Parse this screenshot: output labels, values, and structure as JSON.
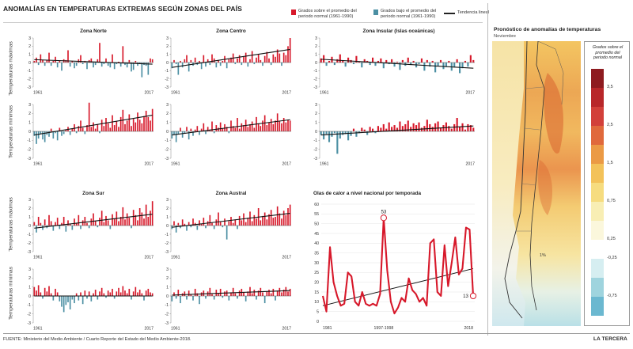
{
  "title": "ANOMALÍAS EN TEMPERATURAS EXTREMAS SEGÚN ZONAS DEL PAÍS",
  "legend": {
    "above": "Grados sobre el promedio del periodo normal (1961-1990)",
    "below": "Grados bajo el promedio del periodo normal (1961-1990)",
    "trend": "Tendencia lineal",
    "above_color": "#d7182a",
    "below_color": "#4b8fa3"
  },
  "row_labels": {
    "max": "Temperaturas máximas",
    "min": "Temperaturas mínimas"
  },
  "zones": {
    "norte": "Zona Norte",
    "centro": "Zona Centro",
    "insular": "Zona Insular (Islas oceánicas)",
    "sur": "Zona Sur",
    "austral": "Zona Austral"
  },
  "heat_title": "Olas de calor a nivel nacional por temporada",
  "map": {
    "title": "Pronóstico de anomalías de temperaturas",
    "subtitle": "Noviembre",
    "scale_title": "Grados sobre el promedio del periodo normal",
    "scale_labels": [
      "3,5",
      "2,5",
      "1,5",
      "0,75",
      "0,25",
      "-0,25",
      "-0,75"
    ],
    "scale_colors": [
      "#8e1b20",
      "#b8272a",
      "#d2403a",
      "#e0693c",
      "#eb9a45",
      "#f3c25a",
      "#f6dc7f",
      "#f8eeb4",
      "#fbf7dc",
      "#ffffff",
      "#d6eef1",
      "#9fd4de",
      "#6bb8d0"
    ],
    "islands_label": "1%"
  },
  "footer": "FUENTE: Ministerio del Medio Ambiente / Cuarto Reporte del Estado del Medio Ambiente-2018.",
  "brand": "LA TERCERA",
  "chart_data": [
    {
      "type": "bar",
      "name": "Zona Norte - máximas",
      "x_start": 1961,
      "x_end": 2017,
      "x_tick_labels": [
        "1961",
        "2017"
      ],
      "ylim": [
        -3,
        3
      ],
      "values": [
        0.2,
        0.6,
        -0.3,
        1.0,
        0.3,
        -0.4,
        0.3,
        1.2,
        -0.4,
        0.2,
        0.7,
        -0.6,
        0.2,
        -1.0,
        0.4,
        0.3,
        1.5,
        -0.5,
        0.2,
        -0.7,
        -0.4,
        0.4,
        0.9,
        -0.2,
        0.2,
        -0.8,
        0.3,
        0.5,
        -0.6,
        -0.3,
        0.4,
        2.4,
        -0.5,
        -0.2,
        0.5,
        -0.4,
        -0.6,
        1.0,
        -0.8,
        -0.2,
        0.1,
        -0.5,
        2.0,
        -0.3,
        -0.6,
        0.3,
        -1.1,
        -0.9,
        0.2,
        -0.4,
        -0.2,
        -1.8,
        -0.3,
        -0.4,
        -1.5,
        0.5,
        0.4
      ],
      "trend": [
        0.35,
        -0.2
      ]
    },
    {
      "type": "bar",
      "name": "Zona Centro - máximas",
      "x_start": 1961,
      "x_end": 2017,
      "x_tick_labels": [
        "1961",
        "2017"
      ],
      "ylim": [
        -3,
        3
      ],
      "values": [
        -0.7,
        0.3,
        -0.2,
        -1.5,
        0.2,
        -0.6,
        0.4,
        0.9,
        -1.1,
        0.3,
        -0.4,
        0.6,
        -0.3,
        0.2,
        -0.8,
        0.9,
        -0.5,
        0.4,
        -0.3,
        1.0,
        0.5,
        -0.6,
        0.3,
        -0.4,
        0.2,
        0.8,
        -0.7,
        0.4,
        0.6,
        1.1,
        -0.2,
        0.5,
        0.9,
        -0.3,
        0.7,
        1.2,
        -0.5,
        0.4,
        1.4,
        -0.2,
        0.6,
        1.0,
        0.3,
        -0.4,
        0.8,
        1.3,
        0.5,
        -0.3,
        1.0,
        0.7,
        1.6,
        1.1,
        -0.4,
        1.2,
        0.9,
        2.0,
        3.0
      ],
      "trend": [
        -0.6,
        1.6
      ]
    },
    {
      "type": "bar",
      "name": "Zona Insular - máximas",
      "x_start": 1961,
      "x_end": 2017,
      "x_tick_labels": [
        "1961",
        "2017"
      ],
      "ylim": [
        -3,
        3
      ],
      "values": [
        0.5,
        0.9,
        -0.4,
        0.2,
        0.7,
        -0.3,
        0.4,
        1.0,
        0.2,
        -0.5,
        0.6,
        0.3,
        -0.2,
        0.8,
        0.1,
        -0.6,
        0.4,
        0.2,
        -0.3,
        0.6,
        -0.4,
        0.2,
        0.5,
        -0.7,
        0.3,
        -0.2,
        0.4,
        -0.5,
        0.1,
        -0.9,
        0.3,
        -0.4,
        0.6,
        -0.3,
        0.2,
        -0.6,
        -0.2,
        0.5,
        -1.0,
        0.3,
        -0.5,
        0.2,
        -1.2,
        -0.4,
        0.3,
        -0.8,
        -0.5,
        0.2,
        -1.0,
        -0.6,
        0.4,
        -1.3,
        -0.7,
        0.2,
        -0.5,
        0.9,
        0.3
      ],
      "trend": [
        0.4,
        -0.7
      ]
    },
    {
      "type": "bar",
      "name": "Zona Norte - mínimas",
      "x_start": 1961,
      "x_end": 2017,
      "x_tick_labels": [
        "1961",
        "2017"
      ],
      "ylim": [
        -3,
        3
      ],
      "values": [
        -0.5,
        -1.4,
        -0.8,
        -0.3,
        -0.9,
        -1.2,
        -0.4,
        -0.6,
        0.3,
        -0.8,
        -0.2,
        -1.0,
        0.4,
        -0.5,
        -0.3,
        0.2,
        0.5,
        -0.4,
        0.3,
        0.8,
        -0.2,
        0.6,
        1.2,
        0.4,
        -0.3,
        0.7,
        3.2,
        0.5,
        1.0,
        0.3,
        0.8,
        -0.2,
        1.3,
        0.6,
        1.5,
        0.9,
        0.4,
        1.8,
        0.7,
        1.1,
        0.5,
        1.6,
        2.4,
        0.8,
        1.2,
        1.9,
        0.6,
        1.4,
        1.0,
        2.1,
        1.3,
        0.9,
        1.7,
        2.3,
        1.6,
        1.2,
        2.5
      ],
      "trend": [
        -0.4,
        1.8
      ]
    },
    {
      "type": "bar",
      "name": "Zona Centro - mínimas",
      "x_start": 1961,
      "x_end": 2017,
      "x_tick_labels": [
        "1961",
        "2017"
      ],
      "ylim": [
        -3,
        3
      ],
      "values": [
        -0.8,
        -0.4,
        -1.2,
        -0.3,
        0.4,
        -0.7,
        -0.2,
        0.5,
        -0.9,
        0.3,
        -0.5,
        0.2,
        0.6,
        -0.4,
        0.3,
        0.9,
        -0.3,
        0.5,
        0.2,
        1.1,
        -0.2,
        0.7,
        0.4,
        1.0,
        0.3,
        0.8,
        0.5,
        -0.2,
        1.2,
        0.6,
        0.4,
        1.5,
        0.3,
        0.9,
        0.7,
        1.3,
        0.5,
        0.8,
        1.1,
        0.4,
        1.6,
        0.9,
        0.6,
        1.2,
        1.8,
        0.7,
        1.0,
        1.4,
        0.8,
        1.2,
        2.0,
        1.1,
        0.9,
        1.5,
        1.0,
        1.3,
        1.2
      ],
      "trend": [
        -0.4,
        1.3
      ]
    },
    {
      "type": "bar",
      "name": "Zona Insular - mínimas",
      "x_start": 1961,
      "x_end": 2017,
      "x_tick_labels": [
        "1961",
        "2017"
      ],
      "ylim": [
        -3,
        3
      ],
      "values": [
        -0.4,
        -0.9,
        -0.3,
        -1.2,
        -0.6,
        -0.2,
        -2.5,
        -0.8,
        -0.4,
        -0.3,
        -1.0,
        -0.5,
        0.3,
        -0.6,
        -0.2,
        0.4,
        0.2,
        -0.4,
        0.5,
        0.3,
        -0.2,
        0.6,
        0.4,
        0.8,
        0.3,
        1.0,
        0.5,
        0.7,
        0.4,
        1.1,
        0.6,
        0.8,
        1.2,
        0.5,
        0.9,
        0.7,
        1.0,
        0.4,
        0.6,
        1.3,
        0.8,
        0.5,
        0.9,
        1.1,
        0.4,
        0.7,
        1.0,
        0.6,
        0.3,
        0.8,
        1.5,
        0.5,
        0.9,
        0.2,
        0.8,
        0.7,
        0.4
      ],
      "trend": [
        -0.4,
        0.6
      ]
    },
    {
      "type": "bar",
      "name": "Zona Sur - máximas",
      "x_start": 1961,
      "x_end": 2017,
      "x_tick_labels": [
        "1961",
        "2017"
      ],
      "ylim": [
        -3,
        3
      ],
      "values": [
        0.4,
        -0.8,
        1.0,
        0.3,
        -0.5,
        0.7,
        -0.3,
        1.2,
        0.5,
        -0.6,
        0.4,
        0.9,
        -0.4,
        0.3,
        1.0,
        -0.7,
        0.6,
        0.2,
        -0.5,
        0.8,
        0.3,
        1.2,
        -0.4,
        0.6,
        1.0,
        0.3,
        -0.3,
        0.8,
        1.4,
        0.5,
        -0.2,
        0.9,
        1.7,
        0.4,
        1.1,
        0.6,
        -0.4,
        1.3,
        0.8,
        1.6,
        0.5,
        1.0,
        2.1,
        0.7,
        1.4,
        0.9,
        -0.3,
        1.8,
        1.2,
        0.6,
        2.0,
        1.5,
        0.8,
        2.4,
        1.0,
        1.7,
        2.8
      ],
      "trend": [
        -0.3,
        1.3
      ]
    },
    {
      "type": "bar",
      "name": "Zona Austral - máximas",
      "x_start": 1961,
      "x_end": 2017,
      "x_tick_labels": [
        "1961",
        "2017"
      ],
      "ylim": [
        -3,
        3
      ],
      "values": [
        -0.4,
        0.5,
        -0.8,
        0.3,
        -0.3,
        0.7,
        0.2,
        -0.6,
        0.4,
        -0.2,
        0.8,
        0.3,
        -0.5,
        0.6,
        0.2,
        0.9,
        -0.3,
        0.5,
        1.2,
        0.3,
        -0.4,
        0.7,
        1.5,
        0.4,
        -0.2,
        0.8,
        -1.6,
        0.5,
        1.0,
        0.3,
        0.7,
        -0.4,
        1.1,
        0.6,
        1.4,
        0.4,
        0.9,
        1.6,
        0.5,
        1.2,
        0.8,
        2.0,
        0.6,
        1.1,
        1.5,
        0.7,
        1.3,
        1.8,
        0.9,
        1.0,
        2.2,
        1.4,
        0.8,
        1.7,
        1.2,
        2.0,
        2.4
      ],
      "trend": [
        -0.2,
        1.4
      ]
    },
    {
      "type": "bar",
      "name": "Zona Sur - mínimas",
      "x_start": 1961,
      "x_end": 2017,
      "x_tick_labels": [
        "1961",
        "2017"
      ],
      "ylim": [
        -3,
        3
      ],
      "values": [
        1.0,
        0.6,
        1.2,
        0.4,
        -0.3,
        0.9,
        0.5,
        1.1,
        0.3,
        -0.5,
        0.8,
        0.4,
        -0.6,
        -1.2,
        -1.8,
        -1.0,
        -0.7,
        -1.5,
        -0.4,
        -0.8,
        0.3,
        -0.5,
        0.4,
        -0.9,
        0.6,
        -0.3,
        0.5,
        -0.6,
        0.3,
        0.7,
        -0.4,
        0.5,
        0.9,
        0.3,
        -0.2,
        0.6,
        0.4,
        0.8,
        -0.3,
        0.5,
        0.9,
        0.4,
        1.1,
        0.6,
        0.3,
        0.8,
        -0.4,
        0.5,
        1.0,
        0.4,
        0.7,
        0.3,
        -0.5,
        0.6,
        0.8,
        0.4,
        0.3
      ],
      "trend": [
        0.0,
        0.0
      ]
    },
    {
      "type": "bar",
      "name": "Zona Austral - mínimas",
      "x_start": 1961,
      "x_end": 2017,
      "x_tick_labels": [
        "1961",
        "2017"
      ],
      "ylim": [
        -3,
        3
      ],
      "values": [
        -0.6,
        0.4,
        -0.3,
        0.7,
        -0.8,
        0.3,
        0.5,
        -0.4,
        0.6,
        0.2,
        -0.5,
        0.8,
        0.3,
        -0.9,
        0.4,
        0.6,
        -0.3,
        0.5,
        0.9,
        0.2,
        -0.4,
        0.7,
        0.3,
        0.8,
        -0.2,
        0.5,
        0.6,
        -0.5,
        0.4,
        0.9,
        0.3,
        -0.3,
        0.6,
        0.8,
        0.4,
        -0.6,
        0.5,
        1.0,
        0.3,
        0.7,
        -0.4,
        0.6,
        0.9,
        0.4,
        -0.8,
        0.5,
        0.7,
        0.3,
        0.8,
        -0.5,
        0.6,
        0.9,
        0.4,
        0.7,
        1.0,
        0.5,
        0.8
      ],
      "trend": [
        0.1,
        0.6
      ]
    },
    {
      "type": "line",
      "name": "Olas de calor a nivel nacional por temporada",
      "x_tick_labels": [
        "1981",
        "1997-1998",
        "2018"
      ],
      "ylim": [
        0,
        60
      ],
      "yticks": [
        0,
        5,
        10,
        15,
        20,
        25,
        30,
        35,
        40,
        45,
        50,
        55,
        60
      ],
      "values": [
        13,
        5,
        38,
        20,
        13,
        8,
        9,
        25,
        23,
        10,
        8,
        15,
        9,
        8,
        9,
        8,
        14,
        53,
        26,
        10,
        4,
        7,
        12,
        10,
        22,
        16,
        14,
        10,
        12,
        8,
        40,
        42,
        15,
        13,
        39,
        18,
        30,
        43,
        24,
        27,
        48,
        47,
        13
      ],
      "annotations": [
        {
          "label": "53",
          "index": 17
        },
        {
          "label": "13",
          "index": 42
        }
      ],
      "trend": [
        8,
        27
      ]
    }
  ]
}
